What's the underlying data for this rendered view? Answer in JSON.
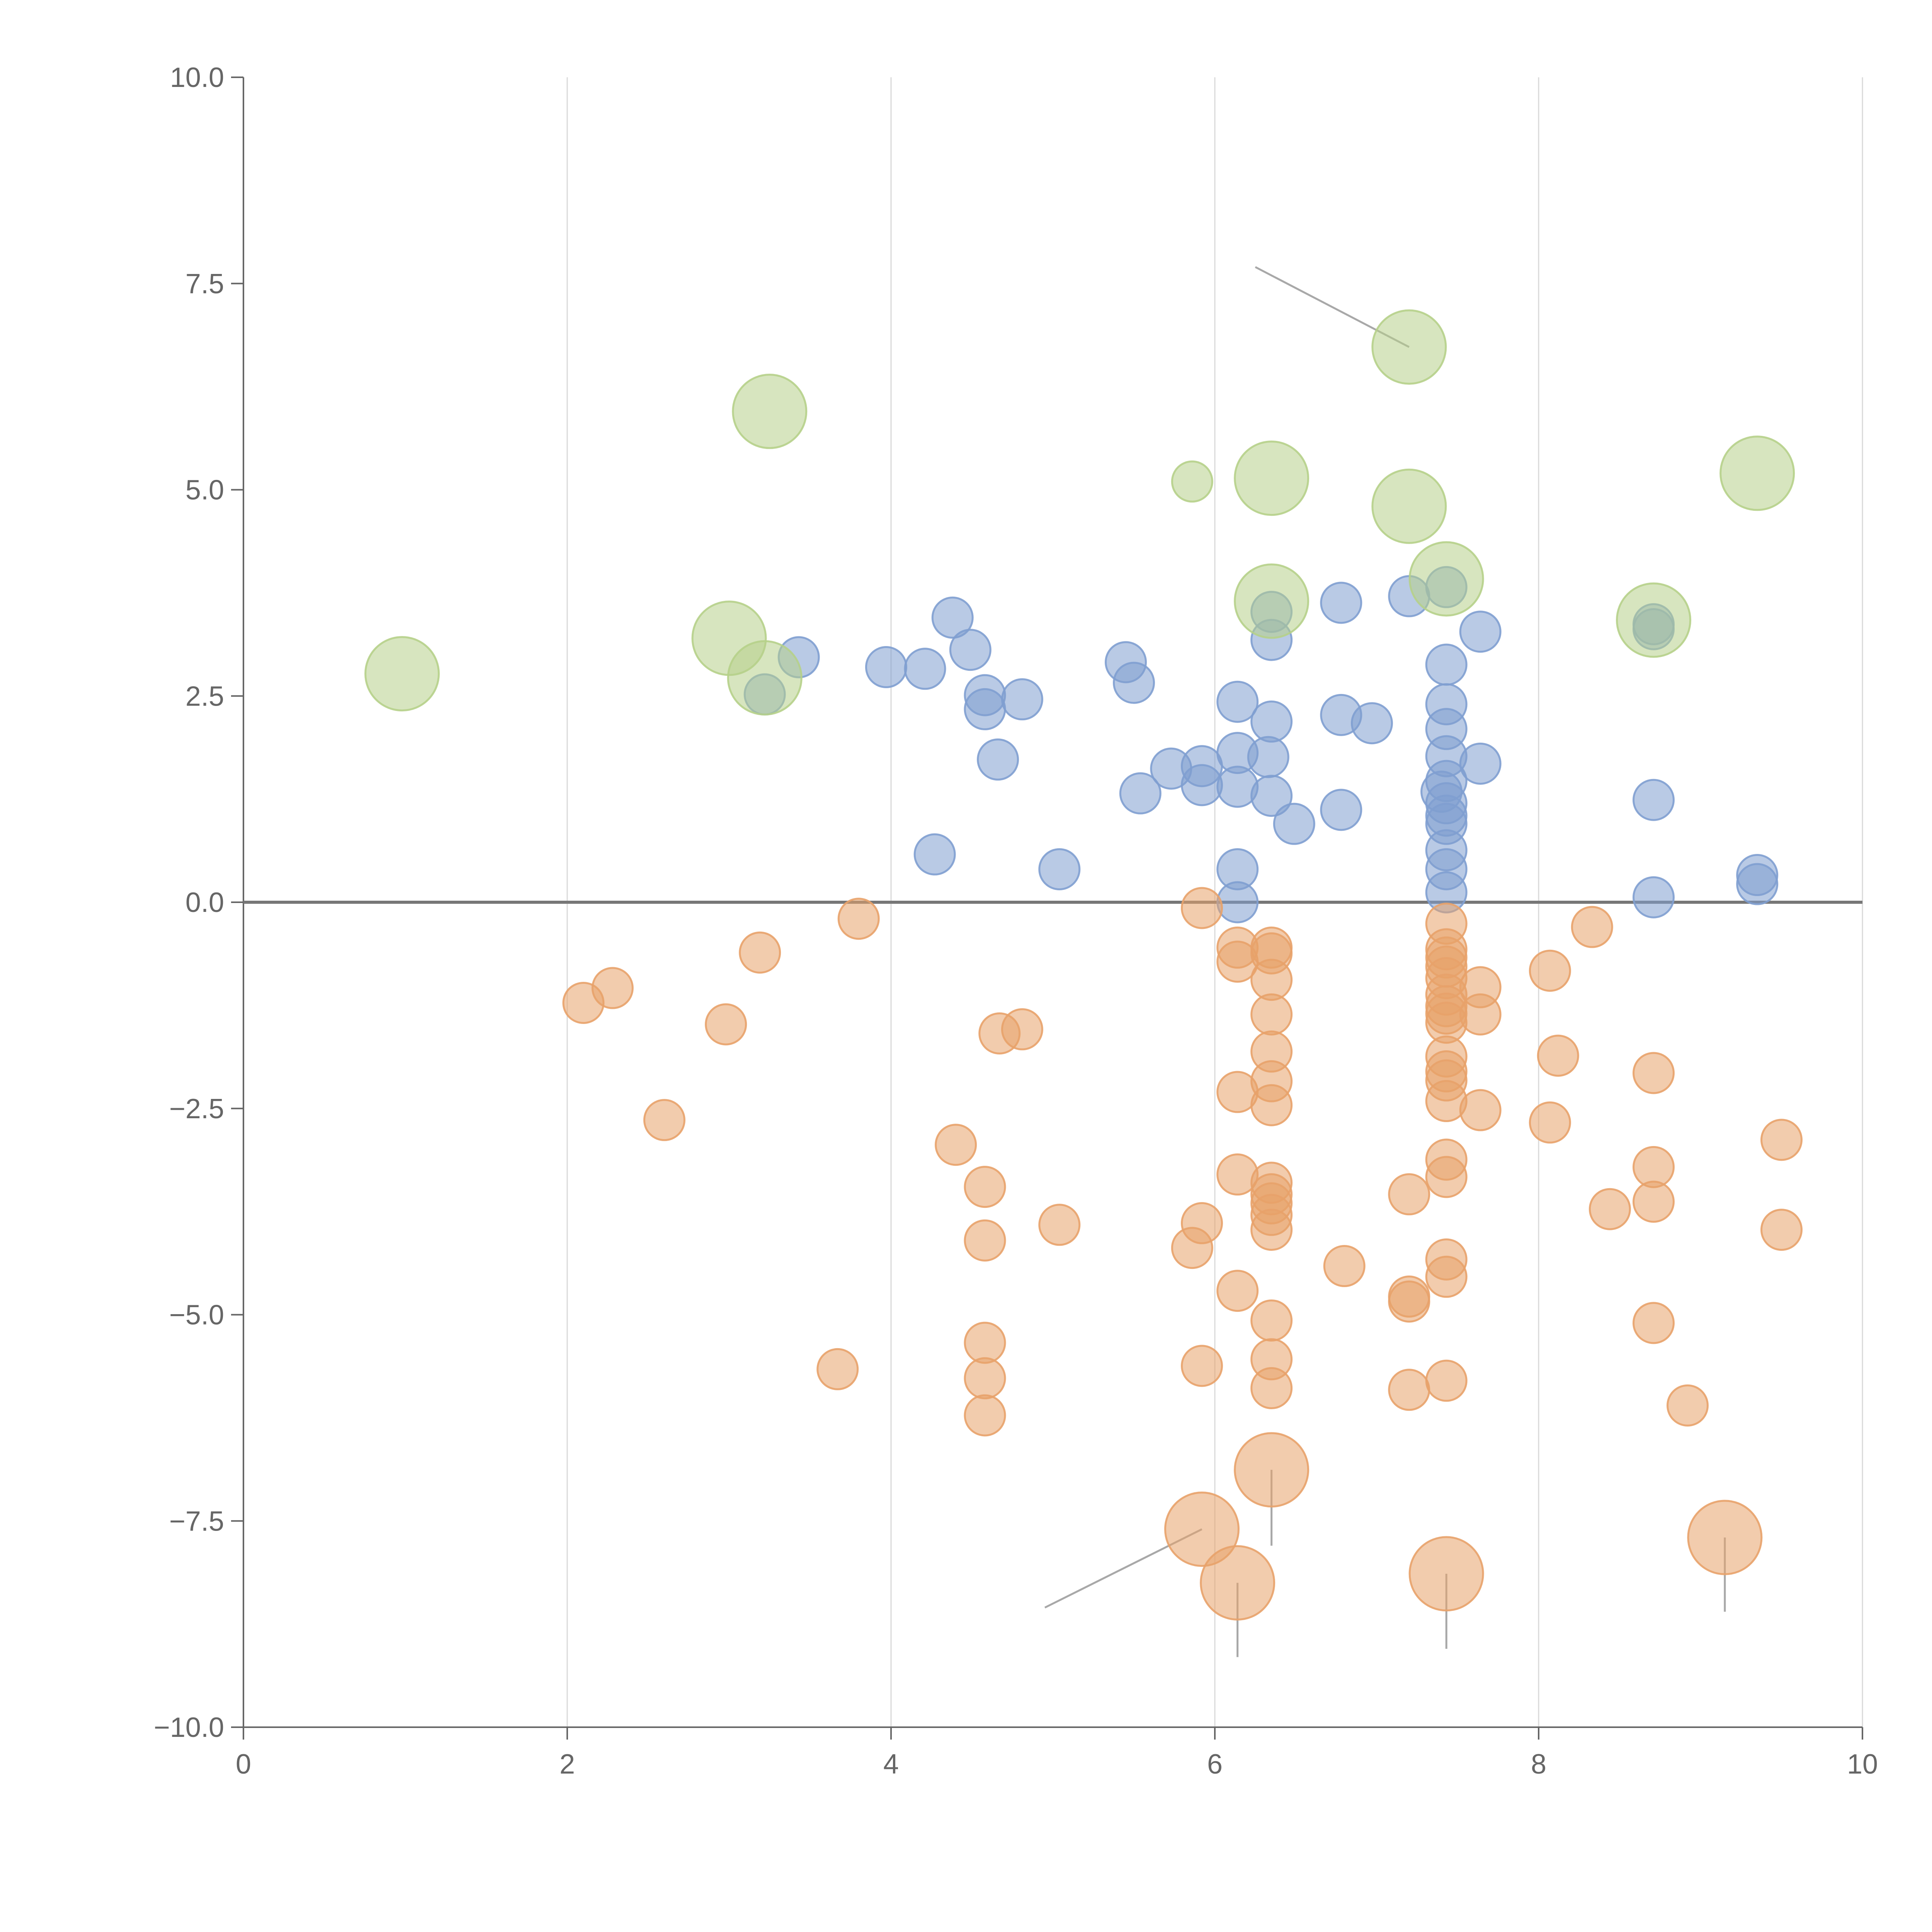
{
  "chart_data": {
    "type": "scatter",
    "title": "",
    "xlabel": "",
    "ylabel": "",
    "xlim": [
      0,
      10
    ],
    "ylim": [
      -10,
      10
    ],
    "x_ticks": [
      0,
      2,
      4,
      6,
      8,
      10
    ],
    "x_tick_labels": [
      "0",
      "2",
      "4",
      "6",
      "8",
      "10"
    ],
    "y_ticks": [
      10,
      7.5,
      5,
      2.5,
      0,
      -2.5,
      -5,
      -7.5,
      -10
    ],
    "y_tick_labels": [
      "10.0",
      "7.5",
      "5.0",
      "2.5",
      "0.0",
      "−2.5",
      "−5.0",
      "−7.5",
      "−10.0"
    ],
    "grid": "vertical",
    "zero_line": true,
    "colors": {
      "positive": "#7f9fd0",
      "negative": "#e8a26a",
      "highlight": "#b6d08a"
    },
    "series": [
      {
        "name": "positive",
        "color": "#7f9fd0",
        "size": "small",
        "points": [
          [
            3.22,
            2.52
          ],
          [
            3.43,
            2.97
          ],
          [
            3.97,
            2.85
          ],
          [
            4.21,
            2.83
          ],
          [
            4.27,
            0.58
          ],
          [
            4.38,
            3.45
          ],
          [
            4.49,
            3.06
          ],
          [
            4.58,
            2.51
          ],
          [
            4.58,
            2.34
          ],
          [
            4.66,
            1.73
          ],
          [
            4.81,
            2.46
          ],
          [
            5.04,
            0.4
          ],
          [
            5.45,
            2.91
          ],
          [
            5.5,
            2.66
          ],
          [
            5.54,
            1.32
          ],
          [
            5.73,
            1.62
          ],
          [
            5.92,
            1.65
          ],
          [
            5.92,
            1.42
          ],
          [
            6.14,
            2.43
          ],
          [
            6.14,
            1.81
          ],
          [
            6.14,
            1.4
          ],
          [
            6.14,
            0.4
          ],
          [
            6.14,
            0.0
          ],
          [
            6.35,
            3.52
          ],
          [
            6.35,
            3.18
          ],
          [
            6.35,
            2.19
          ],
          [
            6.33,
            1.76
          ],
          [
            6.35,
            1.29
          ],
          [
            6.49,
            0.95
          ],
          [
            6.78,
            3.63
          ],
          [
            6.78,
            2.27
          ],
          [
            6.78,
            1.12
          ],
          [
            6.97,
            2.17
          ],
          [
            7.2,
            3.71
          ],
          [
            7.43,
            3.82
          ],
          [
            7.43,
            2.88
          ],
          [
            7.43,
            2.4
          ],
          [
            7.43,
            2.1
          ],
          [
            7.43,
            1.77
          ],
          [
            7.43,
            1.47
          ],
          [
            7.4,
            1.34
          ],
          [
            7.43,
            1.2
          ],
          [
            7.43,
            1.05
          ],
          [
            7.43,
            0.95
          ],
          [
            7.43,
            0.63
          ],
          [
            7.43,
            0.4
          ],
          [
            7.43,
            0.12
          ],
          [
            7.64,
            3.28
          ],
          [
            7.64,
            1.68
          ],
          [
            8.71,
            3.37
          ],
          [
            8.71,
            3.31
          ],
          [
            8.71,
            1.24
          ],
          [
            8.71,
            0.06
          ],
          [
            9.35,
            0.33
          ],
          [
            9.35,
            0.22
          ]
        ]
      },
      {
        "name": "negative",
        "color": "#e8a26a",
        "size": "small",
        "points": [
          [
            2.1,
            -1.22
          ],
          [
            2.28,
            -1.04
          ],
          [
            2.6,
            -2.64
          ],
          [
            2.98,
            -1.48
          ],
          [
            3.19,
            -0.61
          ],
          [
            3.67,
            -5.66
          ],
          [
            3.8,
            -0.2
          ],
          [
            4.4,
            -2.94
          ],
          [
            4.58,
            -3.45
          ],
          [
            4.58,
            -4.1
          ],
          [
            4.58,
            -5.34
          ],
          [
            4.58,
            -5.77
          ],
          [
            4.58,
            -6.22
          ],
          [
            4.67,
            -1.59
          ],
          [
            4.81,
            -1.54
          ],
          [
            5.04,
            -3.91
          ],
          [
            5.86,
            -4.19
          ],
          [
            5.92,
            -0.07
          ],
          [
            5.92,
            -3.89
          ],
          [
            5.92,
            -5.62
          ],
          [
            6.14,
            -0.55
          ],
          [
            6.14,
            -0.72
          ],
          [
            6.14,
            -2.3
          ],
          [
            6.14,
            -3.3
          ],
          [
            6.14,
            -4.71
          ],
          [
            6.35,
            -0.55
          ],
          [
            6.35,
            -0.62
          ],
          [
            6.35,
            -0.94
          ],
          [
            6.35,
            -1.36
          ],
          [
            6.35,
            -1.81
          ],
          [
            6.35,
            -2.17
          ],
          [
            6.35,
            -2.46
          ],
          [
            6.35,
            -3.4
          ],
          [
            6.35,
            -3.54
          ],
          [
            6.35,
            -3.65
          ],
          [
            6.35,
            -3.79
          ],
          [
            6.35,
            -3.97
          ],
          [
            6.35,
            -5.07
          ],
          [
            6.35,
            -5.54
          ],
          [
            6.35,
            -5.89
          ],
          [
            6.8,
            -4.41
          ],
          [
            7.2,
            -3.54
          ],
          [
            7.2,
            -4.78
          ],
          [
            7.2,
            -4.84
          ],
          [
            7.2,
            -5.91
          ],
          [
            7.43,
            -0.26
          ],
          [
            7.43,
            -0.57
          ],
          [
            7.43,
            -0.67
          ],
          [
            7.43,
            -0.78
          ],
          [
            7.43,
            -0.92
          ],
          [
            7.43,
            -1.12
          ],
          [
            7.43,
            -1.26
          ],
          [
            7.43,
            -1.35
          ],
          [
            7.43,
            -1.46
          ],
          [
            7.43,
            -1.87
          ],
          [
            7.43,
            -2.05
          ],
          [
            7.43,
            -2.16
          ],
          [
            7.43,
            -2.41
          ],
          [
            7.43,
            -3.12
          ],
          [
            7.43,
            -3.33
          ],
          [
            7.43,
            -4.33
          ],
          [
            7.43,
            -4.54
          ],
          [
            7.43,
            -5.8
          ],
          [
            7.64,
            -1.03
          ],
          [
            7.64,
            -1.36
          ],
          [
            7.64,
            -2.52
          ],
          [
            8.07,
            -0.83
          ],
          [
            8.07,
            -2.67
          ],
          [
            8.12,
            -1.86
          ],
          [
            8.33,
            -0.3
          ],
          [
            8.44,
            -3.72
          ],
          [
            8.71,
            -2.07
          ],
          [
            8.71,
            -3.21
          ],
          [
            8.71,
            -3.63
          ],
          [
            8.71,
            -5.1
          ],
          [
            8.92,
            -6.1
          ],
          [
            9.5,
            -2.88
          ],
          [
            9.5,
            -3.97
          ]
        ]
      },
      {
        "name": "negative-large",
        "color": "#e8a26a",
        "size": "large",
        "points": [
          [
            5.92,
            -7.6
          ],
          [
            6.14,
            -8.25
          ],
          [
            6.35,
            -6.88
          ],
          [
            7.43,
            -8.14
          ],
          [
            9.15,
            -7.7
          ]
        ]
      },
      {
        "name": "highlight",
        "color": "#b6d08a",
        "size": "large",
        "points": [
          [
            0.98,
            2.77
          ],
          [
            3.0,
            3.2
          ],
          [
            3.22,
            2.72
          ],
          [
            3.25,
            5.95
          ],
          [
            6.35,
            5.14
          ],
          [
            6.35,
            3.65
          ],
          [
            7.2,
            6.73
          ],
          [
            7.2,
            4.8
          ],
          [
            7.43,
            3.92
          ],
          [
            8.71,
            3.42
          ],
          [
            9.35,
            5.2
          ]
        ]
      },
      {
        "name": "highlight-small",
        "color": "#b6d08a",
        "size": "small",
        "points": [
          [
            5.86,
            5.1
          ]
        ]
      }
    ],
    "annotations": [
      {
        "label": "",
        "from": [
          7.2,
          6.73
        ],
        "to": [
          6.25,
          7.7
        ],
        "color": "#a8a8a8"
      },
      {
        "label": "",
        "from": [
          5.92,
          -7.6
        ],
        "to": [
          4.95,
          -8.55
        ],
        "color": "#a8a8a8"
      },
      {
        "label": "",
        "from": [
          6.14,
          -8.25
        ],
        "to": [
          6.14,
          -9.15
        ],
        "color": "#a8a8a8"
      },
      {
        "label": "",
        "from": [
          6.35,
          -6.88
        ],
        "to": [
          6.35,
          -7.8
        ],
        "color": "#a8a8a8"
      },
      {
        "label": "",
        "from": [
          7.43,
          -8.14
        ],
        "to": [
          7.43,
          -9.05
        ],
        "color": "#a8a8a8"
      },
      {
        "label": "",
        "from": [
          9.15,
          -7.7
        ],
        "to": [
          9.15,
          -8.6
        ],
        "color": "#a8a8a8"
      }
    ]
  }
}
